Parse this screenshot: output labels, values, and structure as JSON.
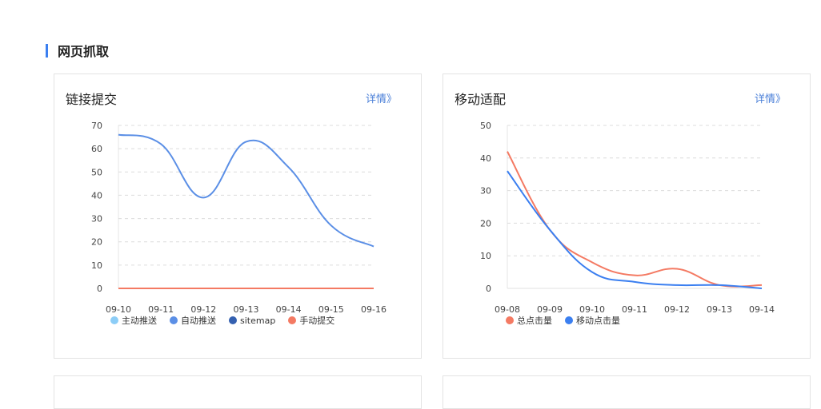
{
  "section": {
    "title": "网页抓取",
    "accent": "#3b7ff0"
  },
  "cards": [
    {
      "title": "链接提交",
      "link": "详情》"
    },
    {
      "title": "移动适配",
      "link": "详情》"
    }
  ],
  "legend1": [
    {
      "label": "主动推送",
      "color": "#8ccdf7"
    },
    {
      "label": "自动推送",
      "color": "#5b8fe6"
    },
    {
      "label": "sitemap",
      "color": "#3460b0"
    },
    {
      "label": "手动提交",
      "color": "#f47a63"
    }
  ],
  "legend2": [
    {
      "label": "总点击量",
      "color": "#f47a63"
    },
    {
      "label": "移动点击量",
      "color": "#3b7ff0"
    }
  ],
  "chart_data": [
    {
      "type": "line",
      "title": "链接提交",
      "categories": [
        "09-10",
        "09-11",
        "09-12",
        "09-13",
        "09-14",
        "09-15",
        "09-16"
      ],
      "yticks": [
        0,
        10,
        20,
        30,
        40,
        50,
        60,
        70
      ],
      "ylim": [
        0,
        70
      ],
      "grid": true,
      "legend_position": "bottom",
      "series": [
        {
          "name": "主动推送",
          "values": [
            0,
            0,
            0,
            0,
            0,
            0,
            0
          ]
        },
        {
          "name": "自动推送",
          "values": [
            66,
            62,
            39,
            63,
            52,
            27,
            18
          ]
        },
        {
          "name": "sitemap",
          "values": [
            0,
            0,
            0,
            0,
            0,
            0,
            0
          ]
        },
        {
          "name": "手动提交",
          "values": [
            0,
            0,
            0,
            0,
            0,
            0,
            0
          ]
        }
      ]
    },
    {
      "type": "line",
      "title": "移动适配",
      "categories": [
        "09-08",
        "09-09",
        "09-10",
        "09-11",
        "09-12",
        "09-13",
        "09-14"
      ],
      "yticks": [
        0,
        10,
        20,
        30,
        40,
        50
      ],
      "ylim": [
        0,
        50
      ],
      "grid": true,
      "legend_position": "bottom",
      "series": [
        {
          "name": "总点击量",
          "values": [
            42,
            18,
            8,
            4,
            6,
            1,
            1
          ]
        },
        {
          "name": "移动点击量",
          "values": [
            36,
            18,
            5,
            2,
            1,
            1,
            0
          ]
        }
      ]
    }
  ]
}
